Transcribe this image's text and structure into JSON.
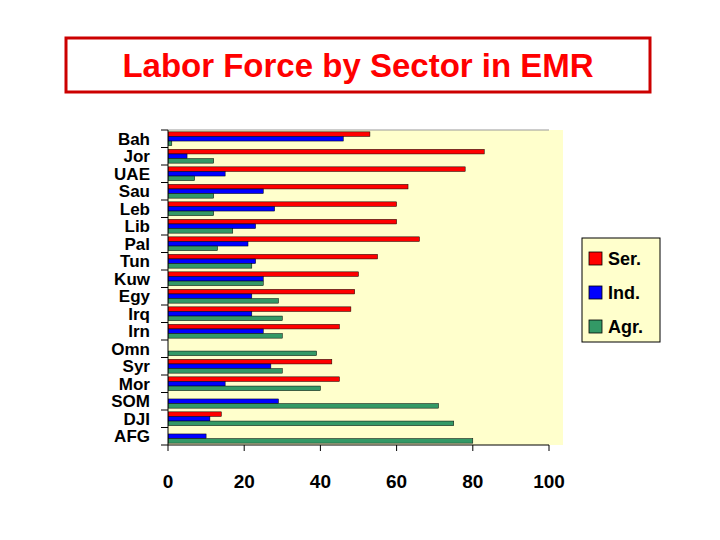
{
  "chart_data": {
    "type": "bar",
    "title": "Labor Force by Sector in EMR",
    "orientation": "horizontal",
    "grid": false,
    "legend": "right",
    "categories": [
      "Bah",
      "Jor",
      "UAE",
      "Sau",
      "Leb",
      "Lib",
      "Pal",
      "Tun",
      "Kuw",
      "Egy",
      "Irq",
      "Irn",
      "Omn",
      "Syr",
      "Mor",
      "SOM",
      "DJI",
      "AFG"
    ],
    "series": [
      {
        "name": "Ser.",
        "color": "#ff0000",
        "values": [
          53,
          83,
          78,
          63,
          60,
          60,
          66,
          55,
          50,
          49,
          48,
          45,
          null,
          43,
          45,
          null,
          14,
          null
        ]
      },
      {
        "name": "Ind.",
        "color": "#0000ff",
        "values": [
          46,
          5,
          15,
          25,
          28,
          23,
          21,
          23,
          25,
          22,
          22,
          25,
          null,
          27,
          15,
          29,
          11,
          10
        ]
      },
      {
        "name": "Agr.",
        "color": "#339966",
        "values": [
          1,
          12,
          7,
          12,
          12,
          17,
          13,
          22,
          25,
          29,
          30,
          30,
          39,
          30,
          40,
          71,
          75,
          80
        ]
      }
    ],
    "xlim": [
      0,
      100
    ],
    "xticks": [
      0,
      20,
      40,
      60,
      80,
      100
    ]
  }
}
